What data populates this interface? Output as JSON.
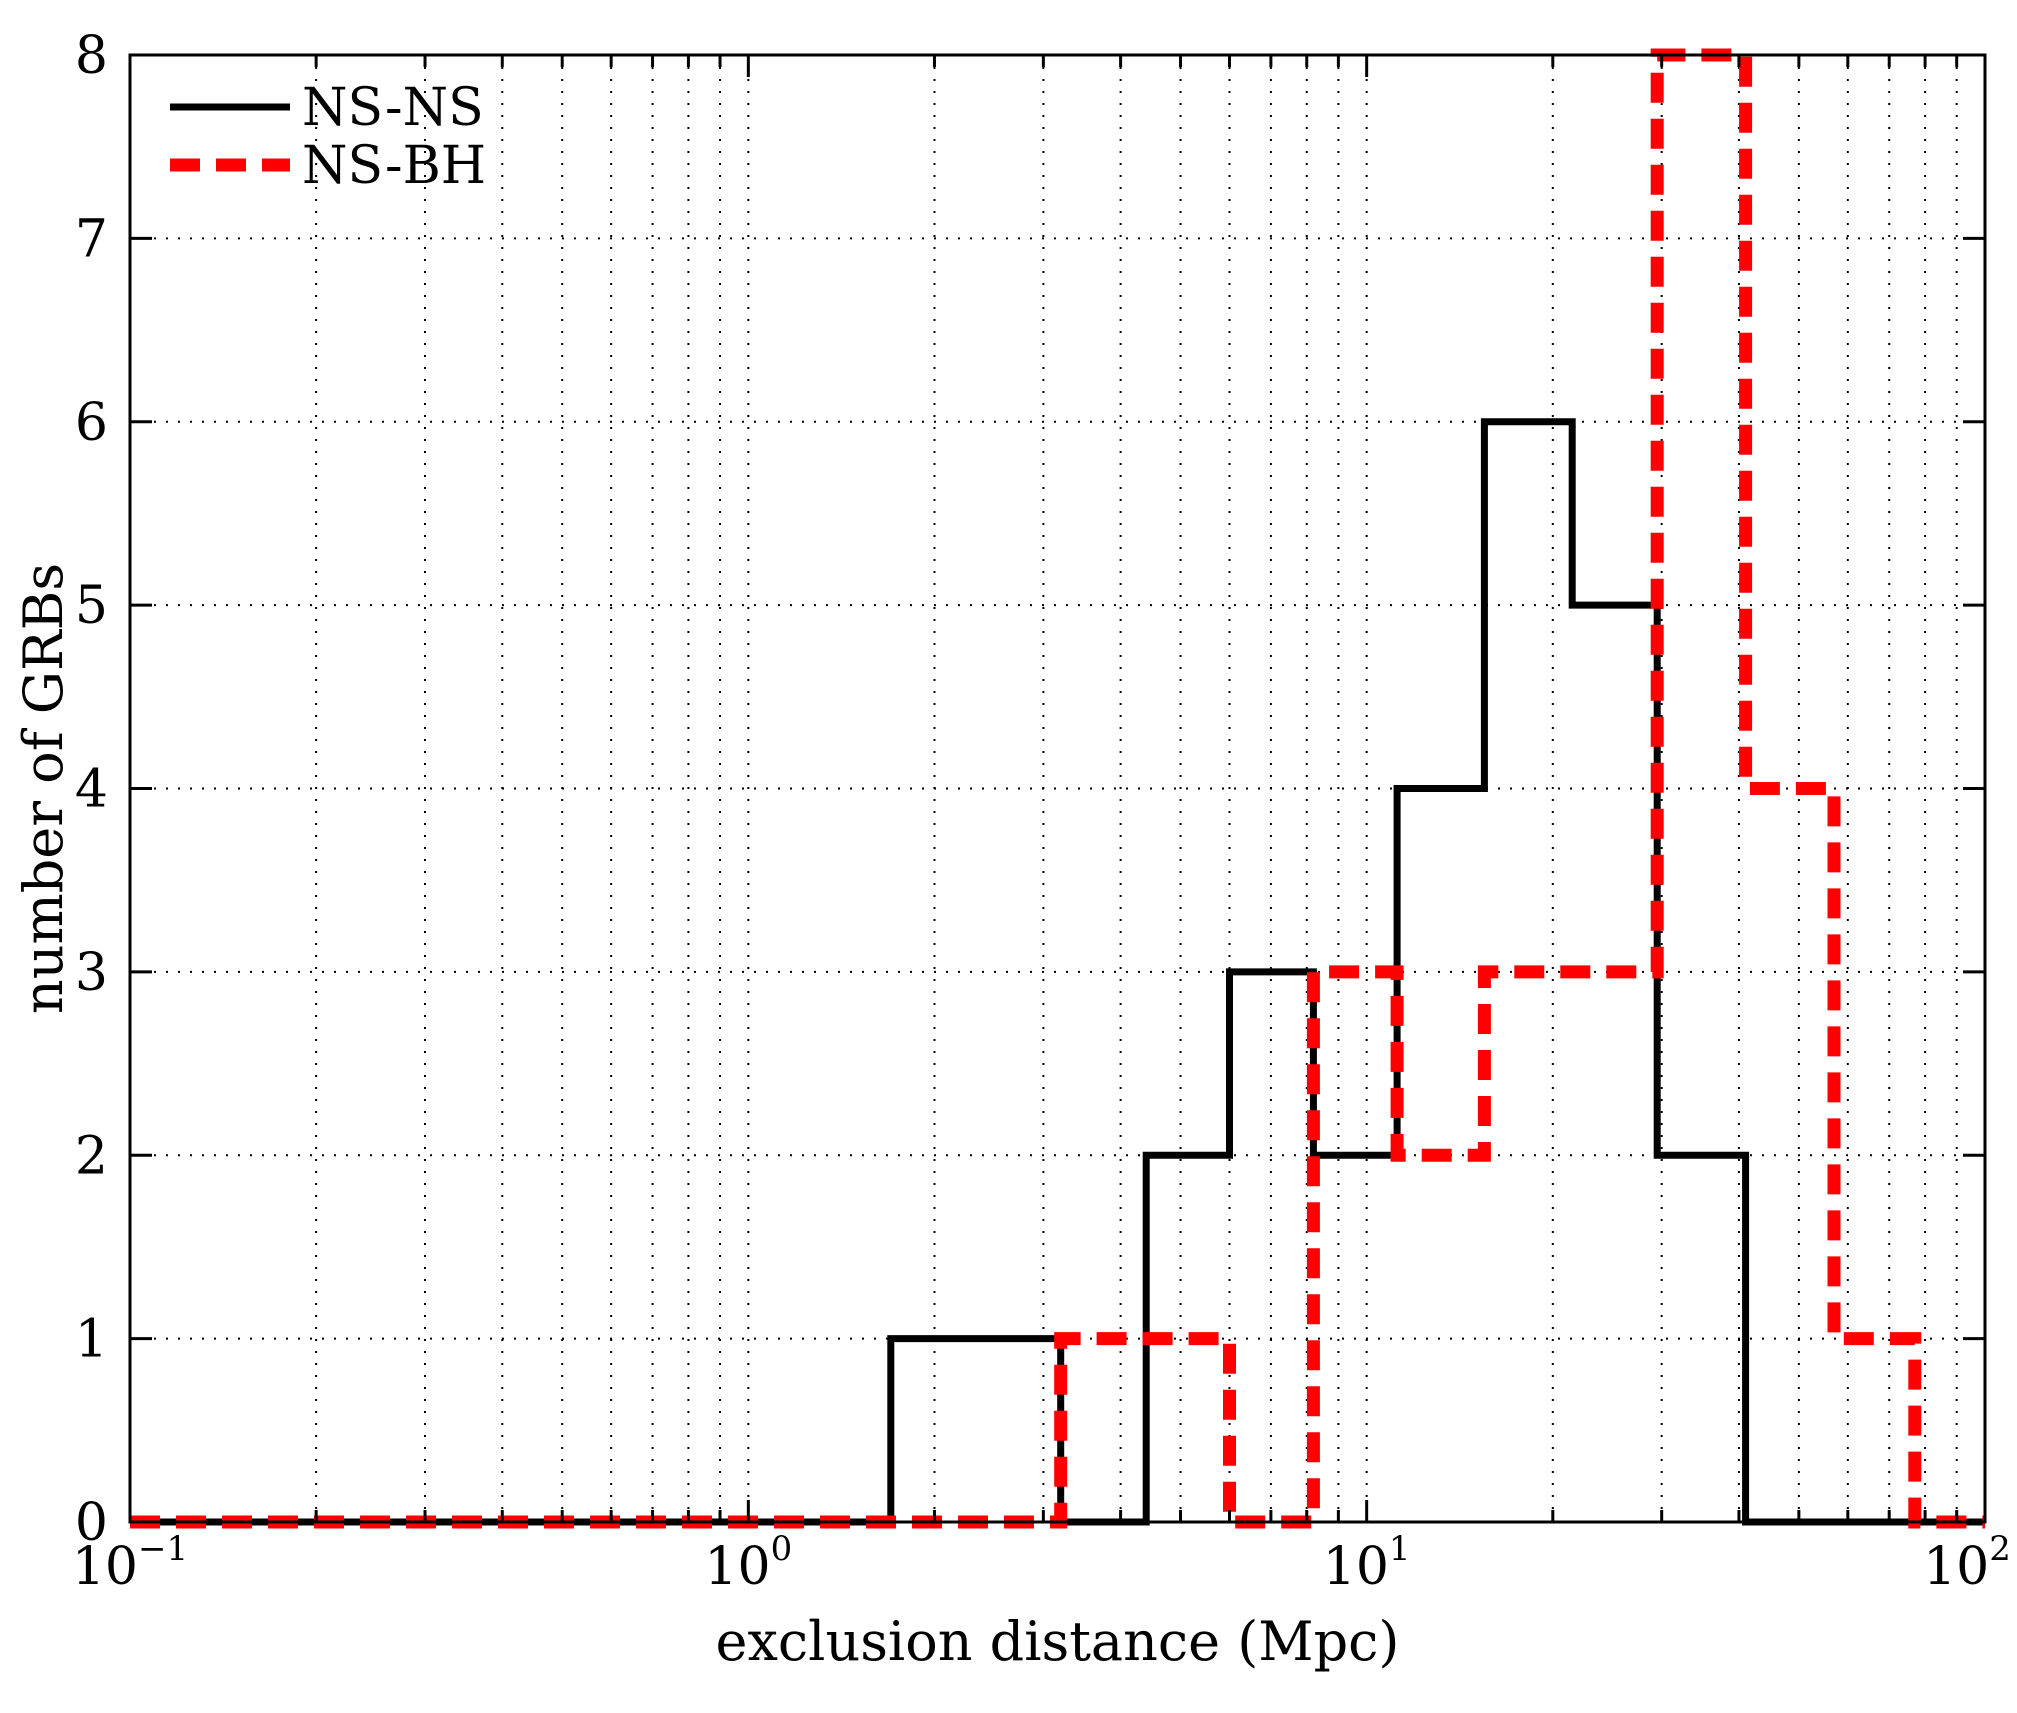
{
  "chart_data": {
    "type": "histogram-step",
    "xlabel": "exclusion distance (Mpc)",
    "ylabel": "number of GRBs",
    "xscale": "log",
    "xlim": [
      0.1,
      100
    ],
    "ylim": [
      0,
      8
    ],
    "grid": true,
    "legend_position": "top-left",
    "x_ticks": [
      {
        "base": "10",
        "exp": "−1",
        "value": 0.1
      },
      {
        "base": "10",
        "exp": "0",
        "value": 1
      },
      {
        "base": "10",
        "exp": "1",
        "value": 10
      },
      {
        "base": "10",
        "exp": "2",
        "value": 100
      }
    ],
    "y_ticks": [
      "0",
      "1",
      "2",
      "3",
      "4",
      "5",
      "6",
      "7",
      "8"
    ],
    "series": [
      {
        "name": "NS-NS",
        "color": "#000000",
        "style": "solid",
        "edges": [
          0.1,
          1.7,
          3.2,
          4.4,
          6.0,
          8.2,
          11.2,
          15.5,
          21.5,
          29.5,
          41,
          100
        ],
        "counts": [
          0,
          1,
          0,
          2,
          3,
          2,
          4,
          6,
          5,
          2,
          0
        ]
      },
      {
        "name": "NS-BH",
        "color": "#ff0000",
        "style": "dashed",
        "edges": [
          0.1,
          3.2,
          6.0,
          8.2,
          11.2,
          15.5,
          29.5,
          41,
          57,
          77,
          100
        ],
        "counts": [
          0,
          1,
          0,
          3,
          2,
          3,
          8,
          4,
          1,
          0
        ]
      }
    ]
  }
}
